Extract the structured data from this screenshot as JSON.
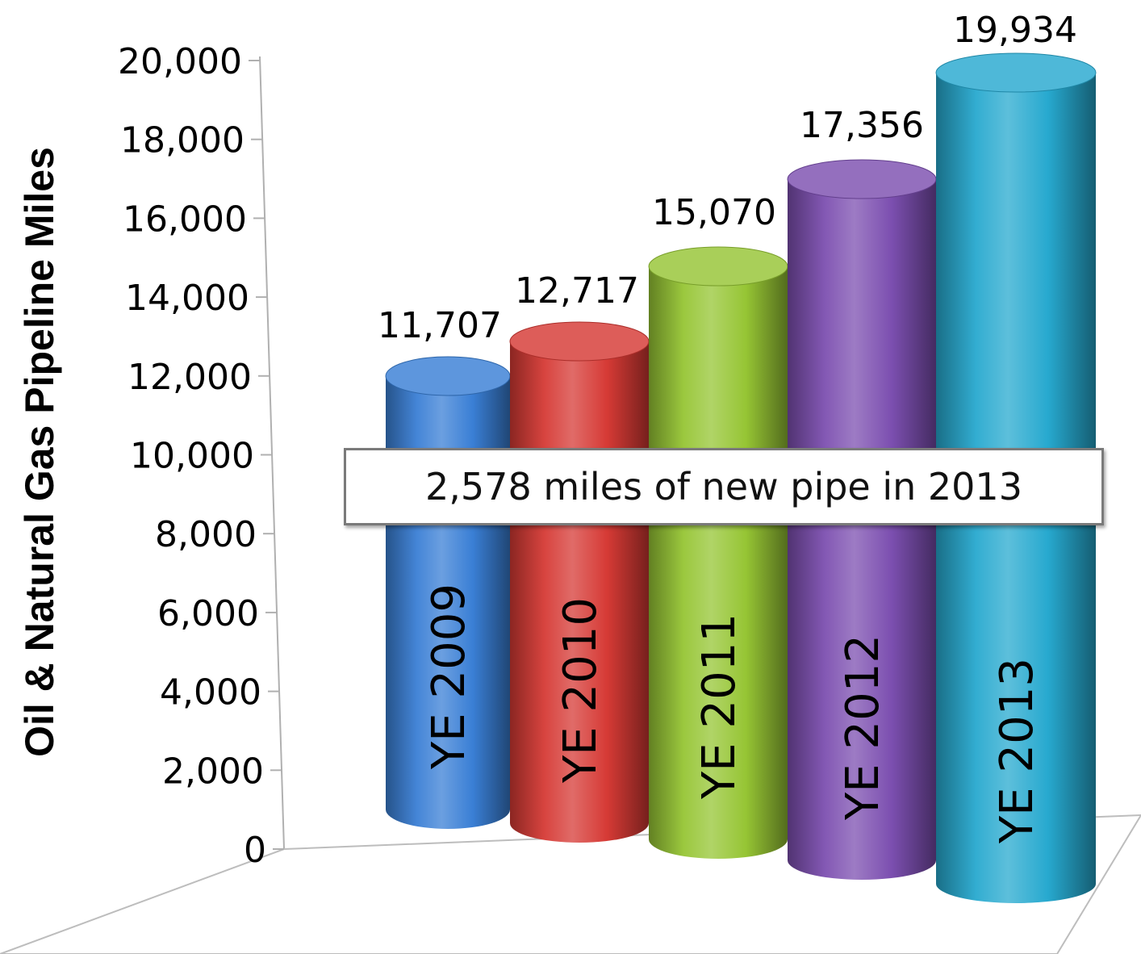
{
  "chart_data": {
    "type": "bar",
    "style": "3d-cylinder",
    "ylabel": "Oil & Natural Gas Pipeline Miles",
    "xlabel": "",
    "ylim": [
      0,
      20000
    ],
    "yticks": [
      "0",
      "2,000",
      "4,000",
      "6,000",
      "8,000",
      "10,000",
      "12,000",
      "14,000",
      "16,000",
      "18,000",
      "20,000"
    ],
    "categories": [
      "YE 2009",
      "YE 2010",
      "YE 2011",
      "YE 2012",
      "YE 2013"
    ],
    "values": [
      11707,
      12717,
      15070,
      17356,
      19934
    ],
    "data_labels": [
      "11,707",
      "12,717",
      "15,070",
      "17,356",
      "19,934"
    ],
    "colors": [
      "#3a7fd5",
      "#d63a35",
      "#96c534",
      "#7c4fb0",
      "#27a9cf"
    ],
    "annotation": "2,578 miles of new pipe in 2013",
    "grid": false,
    "legend": "none"
  }
}
